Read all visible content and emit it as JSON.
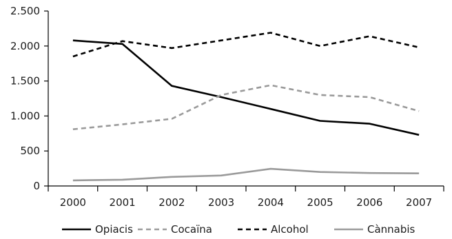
{
  "chart_data": {
    "type": "line",
    "title": "",
    "xlabel": "",
    "ylabel": "",
    "x": [
      "2000",
      "2001",
      "2002",
      "2003",
      "2004",
      "2005",
      "2006",
      "2007"
    ],
    "ylim": [
      0,
      2500
    ],
    "yticks": [
      0,
      500,
      1000,
      1500,
      2000,
      2500
    ],
    "ytick_labels": [
      "0",
      "500",
      "1.000",
      "1.500",
      "2.000",
      "2.500"
    ],
    "grid": false,
    "legend_position": "bottom",
    "series": [
      {
        "name": "Opiacis",
        "values": [
          2080,
          2030,
          1430,
          1270,
          1100,
          930,
          890,
          730
        ],
        "color": "#000000",
        "style": "solid"
      },
      {
        "name": "Cocaïna",
        "values": [
          810,
          880,
          960,
          1300,
          1440,
          1300,
          1270,
          1070
        ],
        "color": "#9a9a9a",
        "style": "dashed"
      },
      {
        "name": "Alcohol",
        "values": [
          1850,
          2070,
          1970,
          2080,
          2190,
          2000,
          2140,
          1980
        ],
        "color": "#000000",
        "style": "dashed"
      },
      {
        "name": "Cànnabis",
        "values": [
          80,
          90,
          130,
          150,
          245,
          200,
          185,
          180
        ],
        "color": "#9a9a9a",
        "style": "solid"
      }
    ]
  }
}
